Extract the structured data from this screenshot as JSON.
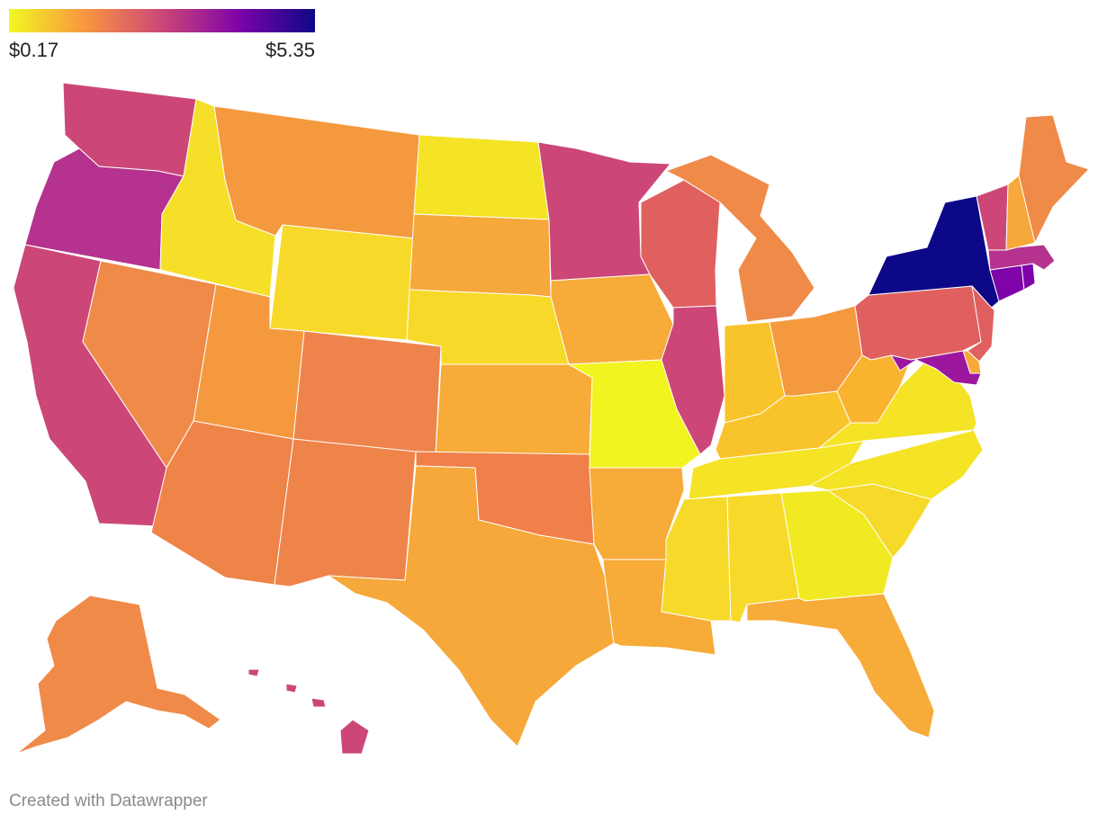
{
  "legend": {
    "min_label": "$0.17",
    "max_label": "$5.35",
    "gradient": [
      "#f0f921",
      "#f89540",
      "#cc4778",
      "#7e03a8",
      "#0d0887"
    ]
  },
  "credit": "Created with Datawrapper",
  "states": [
    {
      "id": "WA",
      "color": "#cc4778"
    },
    {
      "id": "OR",
      "color": "#b5338f"
    },
    {
      "id": "CA",
      "color": "#cc4778"
    },
    {
      "id": "ID",
      "color": "#f6df28"
    },
    {
      "id": "NV",
      "color": "#f08a48"
    },
    {
      "id": "MT",
      "color": "#f5993e"
    },
    {
      "id": "WY",
      "color": "#f7d92a"
    },
    {
      "id": "UT",
      "color": "#f5993e"
    },
    {
      "id": "AZ",
      "color": "#ef8449"
    },
    {
      "id": "CO",
      "color": "#ee844b"
    },
    {
      "id": "NM",
      "color": "#ef844a"
    },
    {
      "id": "ND",
      "color": "#f5e325"
    },
    {
      "id": "SD",
      "color": "#f7a83a"
    },
    {
      "id": "NE",
      "color": "#f7d92a"
    },
    {
      "id": "KS",
      "color": "#f7ab38"
    },
    {
      "id": "OK",
      "color": "#f07f4a"
    },
    {
      "id": "TX",
      "color": "#f7a83a"
    },
    {
      "id": "MN",
      "color": "#cc4778"
    },
    {
      "id": "IA",
      "color": "#f7ab38"
    },
    {
      "id": "MO",
      "color": "#f1f41f"
    },
    {
      "id": "AR",
      "color": "#f7ab38"
    },
    {
      "id": "LA",
      "color": "#f7ab38"
    },
    {
      "id": "WI",
      "color": "#e0605f"
    },
    {
      "id": "IL",
      "color": "#cc4778"
    },
    {
      "id": "MI",
      "color": "#f08a48"
    },
    {
      "id": "IN",
      "color": "#f9c32b"
    },
    {
      "id": "OH",
      "color": "#f5993e"
    },
    {
      "id": "KY",
      "color": "#f9c32b"
    },
    {
      "id": "TN",
      "color": "#f5e325"
    },
    {
      "id": "MS",
      "color": "#f7d92a"
    },
    {
      "id": "AL",
      "color": "#f7d92a"
    },
    {
      "id": "GA",
      "color": "#f1ea22"
    },
    {
      "id": "FL",
      "color": "#f7ab38"
    },
    {
      "id": "SC",
      "color": "#f7d92a"
    },
    {
      "id": "NC",
      "color": "#f5e325"
    },
    {
      "id": "VA",
      "color": "#f5e325"
    },
    {
      "id": "WV",
      "color": "#f9b32f"
    },
    {
      "id": "PA",
      "color": "#e0605f"
    },
    {
      "id": "NY",
      "color": "#0d0887"
    },
    {
      "id": "NJ",
      "color": "#e0605f"
    },
    {
      "id": "DE",
      "color": "#f8a83a"
    },
    {
      "id": "MD",
      "color": "#9c179e"
    },
    {
      "id": "CT",
      "color": "#7e03a8"
    },
    {
      "id": "RI",
      "color": "#7e03a8"
    },
    {
      "id": "MA",
      "color": "#b5338f"
    },
    {
      "id": "VT",
      "color": "#cc4778"
    },
    {
      "id": "NH",
      "color": "#f7a83a"
    },
    {
      "id": "ME",
      "color": "#f08a48"
    },
    {
      "id": "AK",
      "color": "#f08a48"
    },
    {
      "id": "HI",
      "color": "#cc4778"
    }
  ]
}
